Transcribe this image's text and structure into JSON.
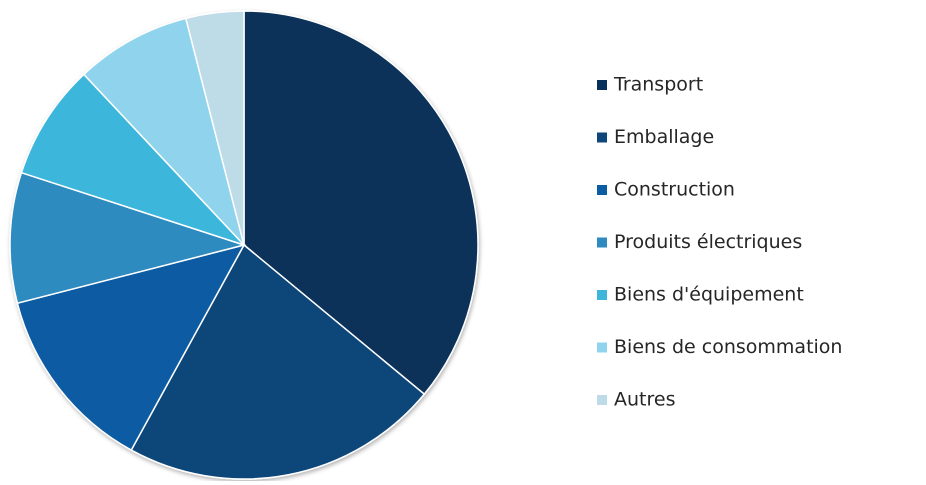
{
  "chart_data": {
    "type": "pie",
    "categories": [
      "Transport",
      "Emballage",
      "Construction",
      "Produits électriques",
      "Biens d'équipement",
      "Biens de consommation",
      "Autres"
    ],
    "values": [
      36,
      22,
      13,
      9,
      8,
      8,
      4
    ],
    "colors": [
      "#07305a",
      "#0f4679",
      "#0a5ca3",
      "#2f8bbf",
      "#3eb6dc",
      "#8fd4ec",
      "#bedbe8"
    ],
    "legend": "right"
  }
}
